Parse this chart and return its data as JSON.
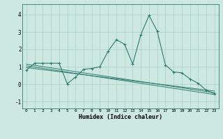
{
  "xlabel": "Humidex (Indice chaleur)",
  "bg_color": "#cce8e0",
  "line_color": "#2e7b6e",
  "grid_color": "#aacfc8",
  "xlim": [
    -0.5,
    23.5
  ],
  "ylim": [
    -1.4,
    4.6
  ],
  "xticks": [
    0,
    1,
    2,
    3,
    4,
    5,
    6,
    7,
    8,
    9,
    10,
    11,
    12,
    13,
    14,
    15,
    16,
    17,
    18,
    19,
    20,
    21,
    22,
    23
  ],
  "yticks": [
    -1,
    0,
    1,
    2,
    3,
    4
  ],
  "main_x": [
    0,
    1,
    2,
    3,
    4,
    5,
    6,
    7,
    8,
    9,
    10,
    11,
    12,
    13,
    14,
    15,
    16,
    17,
    18,
    19,
    20,
    21,
    22,
    23
  ],
  "main_y": [
    0.8,
    1.2,
    1.2,
    1.2,
    1.2,
    0.02,
    0.4,
    0.85,
    0.9,
    1.0,
    1.9,
    2.55,
    2.3,
    1.15,
    2.85,
    3.95,
    3.05,
    1.1,
    0.7,
    0.65,
    0.3,
    0.05,
    -0.35,
    -0.55
  ],
  "trend_lines": [
    {
      "x0": 0.0,
      "y0": 1.15,
      "x1": 23.0,
      "y1": -0.5
    },
    {
      "x0": 0.0,
      "y0": 1.05,
      "x1": 23.0,
      "y1": -0.6
    },
    {
      "x0": 0.0,
      "y0": 0.95,
      "x1": 23.0,
      "y1": -0.4
    }
  ]
}
